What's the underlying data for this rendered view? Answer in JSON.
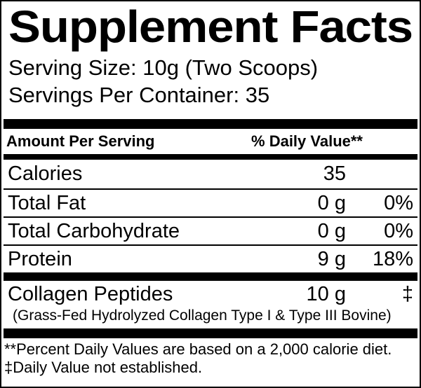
{
  "header": {
    "title": "Supplement Facts"
  },
  "serving": {
    "size": "Serving Size: 10g (Two Scoops)",
    "per_container": "Servings Per Container: 35"
  },
  "table": {
    "amount_header": "Amount Per Serving",
    "dv_header": "% Daily Value**",
    "rows": [
      {
        "name": "Calories",
        "amount": "35",
        "dv": ""
      },
      {
        "name": "Total Fat",
        "amount": "0 g",
        "dv": "0%"
      },
      {
        "name": "Total Carbohydrate",
        "amount": "0 g",
        "dv": "0%"
      },
      {
        "name": "Protein",
        "amount": "9 g",
        "dv": "18%"
      }
    ],
    "supplement": {
      "name": "Collagen Peptides",
      "amount": "10 g",
      "dv": "‡",
      "detail": "(Grass-Fed Hydrolyzed Collagen Type I & Type III Bovine)"
    }
  },
  "footnotes": {
    "daily_value": "**Percent Daily Values are based on a 2,000 calorie diet.",
    "not_established": "‡Daily Value not established."
  },
  "colors": {
    "ink": "#000000",
    "background": "#ffffff"
  }
}
